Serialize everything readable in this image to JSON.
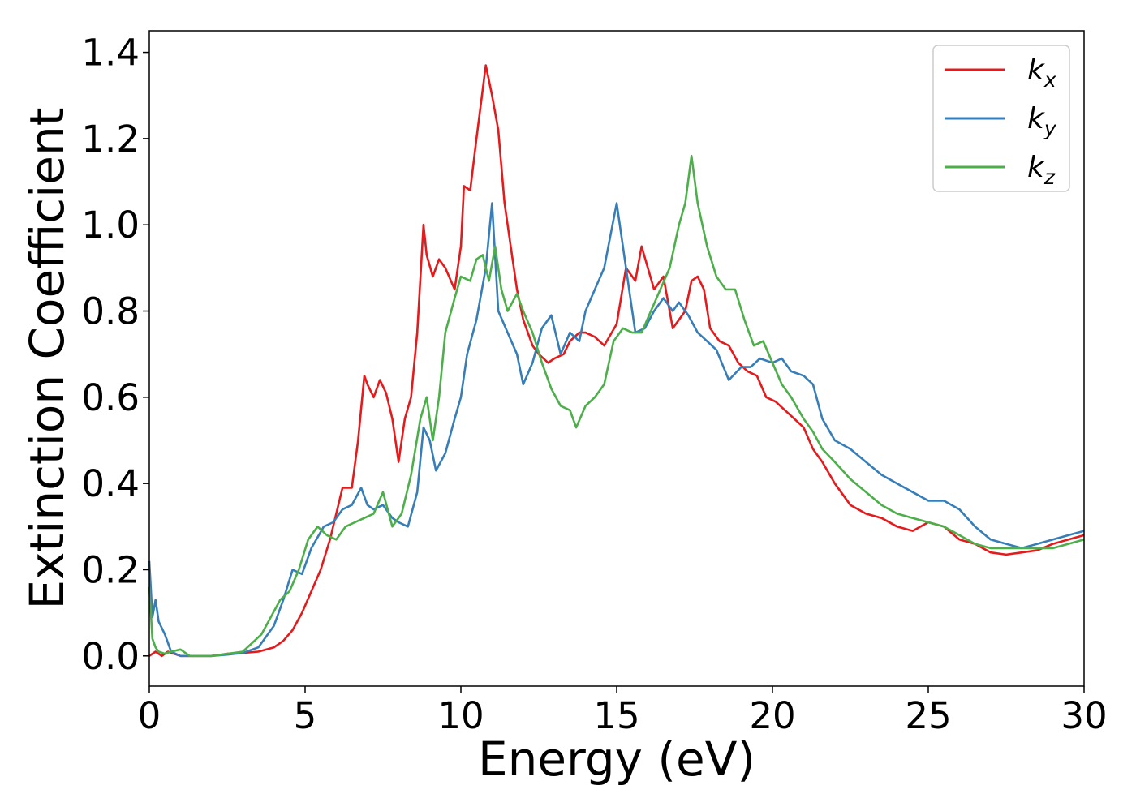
{
  "chart_data": {
    "type": "line",
    "title": "",
    "xlabel": "Energy (eV)",
    "ylabel": "Extinction Coefficient",
    "xlim": [
      0,
      30
    ],
    "ylim": [
      -0.07,
      1.45
    ],
    "xticks": [
      0,
      5,
      10,
      15,
      20,
      25,
      30
    ],
    "yticks": [
      0.0,
      0.2,
      0.4,
      0.6,
      0.8,
      1.0,
      1.2,
      1.4
    ],
    "xtick_labels": [
      "0",
      "5",
      "10",
      "15",
      "20",
      "25",
      "30"
    ],
    "ytick_labels": [
      "0.0",
      "0.2",
      "0.4",
      "0.6",
      "0.8",
      "1.0",
      "1.2",
      "1.4"
    ],
    "grid": false,
    "legend": {
      "position": "top-right"
    },
    "series": [
      {
        "name": "k_x",
        "label_base": "k",
        "label_sub": "x",
        "color": "#e41a1c",
        "x": [
          0,
          0.2,
          0.4,
          0.6,
          0.8,
          1.0,
          1.5,
          2.0,
          2.5,
          3.0,
          3.5,
          4.0,
          4.3,
          4.6,
          4.9,
          5.2,
          5.5,
          5.8,
          6.0,
          6.2,
          6.5,
          6.7,
          6.9,
          7.0,
          7.2,
          7.4,
          7.6,
          7.8,
          8.0,
          8.2,
          8.4,
          8.6,
          8.8,
          8.9,
          9.1,
          9.3,
          9.5,
          9.8,
          10.0,
          10.1,
          10.3,
          10.5,
          10.8,
          11.0,
          11.2,
          11.4,
          11.6,
          11.8,
          12.0,
          12.3,
          12.5,
          12.8,
          13.0,
          13.3,
          13.5,
          13.8,
          14.0,
          14.3,
          14.6,
          15.0,
          15.3,
          15.6,
          15.8,
          16.0,
          16.2,
          16.5,
          16.8,
          17.0,
          17.2,
          17.4,
          17.6,
          17.8,
          18.0,
          18.3,
          18.6,
          18.9,
          19.2,
          19.5,
          19.8,
          20.1,
          20.4,
          20.7,
          21.0,
          21.3,
          21.6,
          22.0,
          22.5,
          23.0,
          23.5,
          24.0,
          24.5,
          25.0,
          25.5,
          26.0,
          26.5,
          27.0,
          27.5,
          28.0,
          28.5,
          29.0,
          29.5,
          30.0
        ],
        "y": [
          0.0,
          0.01,
          0.0,
          0.01,
          0.005,
          0.0,
          0.0,
          0.0,
          0.005,
          0.007,
          0.01,
          0.02,
          0.035,
          0.06,
          0.1,
          0.15,
          0.2,
          0.27,
          0.33,
          0.39,
          0.39,
          0.5,
          0.65,
          0.63,
          0.6,
          0.64,
          0.61,
          0.55,
          0.45,
          0.55,
          0.6,
          0.75,
          1.0,
          0.93,
          0.88,
          0.92,
          0.9,
          0.85,
          0.95,
          1.09,
          1.08,
          1.2,
          1.37,
          1.3,
          1.22,
          1.05,
          0.95,
          0.85,
          0.78,
          0.72,
          0.7,
          0.68,
          0.69,
          0.7,
          0.73,
          0.75,
          0.75,
          0.74,
          0.72,
          0.77,
          0.9,
          0.87,
          0.95,
          0.9,
          0.85,
          0.88,
          0.76,
          0.78,
          0.8,
          0.87,
          0.88,
          0.85,
          0.76,
          0.73,
          0.72,
          0.68,
          0.66,
          0.65,
          0.6,
          0.59,
          0.57,
          0.55,
          0.53,
          0.48,
          0.45,
          0.4,
          0.35,
          0.33,
          0.32,
          0.3,
          0.29,
          0.31,
          0.3,
          0.27,
          0.26,
          0.24,
          0.235,
          0.24,
          0.245,
          0.26,
          0.27,
          0.28
        ]
      },
      {
        "name": "k_y",
        "label_base": "k",
        "label_sub": "y",
        "color": "#377eb8",
        "x": [
          0,
          0.1,
          0.2,
          0.3,
          0.5,
          0.7,
          1.0,
          1.5,
          2.0,
          2.5,
          3.0,
          3.5,
          4.0,
          4.3,
          4.6,
          4.9,
          5.2,
          5.6,
          5.9,
          6.2,
          6.5,
          6.8,
          7.0,
          7.2,
          7.5,
          7.8,
          8.0,
          8.3,
          8.6,
          8.8,
          9.0,
          9.2,
          9.5,
          9.8,
          10.0,
          10.2,
          10.5,
          10.8,
          11.0,
          11.2,
          11.5,
          11.8,
          12.0,
          12.3,
          12.6,
          12.9,
          13.2,
          13.5,
          13.8,
          14.0,
          14.3,
          14.6,
          15.0,
          15.3,
          15.6,
          15.9,
          16.2,
          16.5,
          16.8,
          17.0,
          17.3,
          17.6,
          17.9,
          18.2,
          18.6,
          19.0,
          19.3,
          19.6,
          20.0,
          20.3,
          20.6,
          21.0,
          21.3,
          21.6,
          22.0,
          22.5,
          23.0,
          23.5,
          24.0,
          24.5,
          25.0,
          25.5,
          26.0,
          26.5,
          27.0,
          27.5,
          28.0,
          28.5,
          29.0,
          29.5,
          30.0
        ],
        "y": [
          0.22,
          0.09,
          0.13,
          0.08,
          0.05,
          0.01,
          0.0,
          0.0,
          0.0,
          0.003,
          0.007,
          0.02,
          0.07,
          0.13,
          0.2,
          0.19,
          0.25,
          0.3,
          0.31,
          0.34,
          0.35,
          0.39,
          0.35,
          0.34,
          0.35,
          0.32,
          0.31,
          0.3,
          0.38,
          0.53,
          0.5,
          0.43,
          0.47,
          0.55,
          0.6,
          0.7,
          0.78,
          0.9,
          1.05,
          0.8,
          0.75,
          0.7,
          0.63,
          0.68,
          0.76,
          0.79,
          0.7,
          0.75,
          0.73,
          0.8,
          0.85,
          0.9,
          1.05,
          0.9,
          0.75,
          0.76,
          0.8,
          0.83,
          0.8,
          0.82,
          0.79,
          0.75,
          0.73,
          0.71,
          0.64,
          0.67,
          0.67,
          0.69,
          0.68,
          0.69,
          0.66,
          0.65,
          0.63,
          0.55,
          0.5,
          0.48,
          0.45,
          0.42,
          0.4,
          0.38,
          0.36,
          0.36,
          0.34,
          0.3,
          0.27,
          0.26,
          0.25,
          0.26,
          0.27,
          0.28,
          0.29
        ]
      },
      {
        "name": "k_z",
        "label_base": "k",
        "label_sub": "z",
        "color": "#4daf4a",
        "x": [
          0,
          0.1,
          0.2,
          0.3,
          0.5,
          0.7,
          1.0,
          1.3,
          1.6,
          2.0,
          2.5,
          3.0,
          3.3,
          3.6,
          3.9,
          4.2,
          4.5,
          4.8,
          5.1,
          5.4,
          5.7,
          6.0,
          6.3,
          6.6,
          6.9,
          7.2,
          7.5,
          7.8,
          8.1,
          8.4,
          8.7,
          8.9,
          9.1,
          9.3,
          9.5,
          9.8,
          10.0,
          10.3,
          10.5,
          10.7,
          10.9,
          11.1,
          11.3,
          11.5,
          11.8,
          12.0,
          12.3,
          12.6,
          12.9,
          13.2,
          13.5,
          13.7,
          14.0,
          14.3,
          14.6,
          14.9,
          15.2,
          15.5,
          15.8,
          16.1,
          16.4,
          16.7,
          17.0,
          17.2,
          17.4,
          17.6,
          17.9,
          18.2,
          18.5,
          18.8,
          19.1,
          19.4,
          19.7,
          20.0,
          20.3,
          20.6,
          21.0,
          21.3,
          21.6,
          22.0,
          22.5,
          23.0,
          23.5,
          24.0,
          24.5,
          25.0,
          25.5,
          26.0,
          26.5,
          27.0,
          27.5,
          28.0,
          28.5,
          29.0,
          29.5,
          30.0
        ],
        "y": [
          0.16,
          0.04,
          0.02,
          0.01,
          0.005,
          0.01,
          0.015,
          0.0,
          0.0,
          0.0,
          0.005,
          0.01,
          0.03,
          0.05,
          0.09,
          0.13,
          0.15,
          0.2,
          0.27,
          0.3,
          0.28,
          0.27,
          0.3,
          0.31,
          0.32,
          0.33,
          0.38,
          0.3,
          0.33,
          0.42,
          0.55,
          0.6,
          0.5,
          0.6,
          0.75,
          0.83,
          0.88,
          0.87,
          0.92,
          0.93,
          0.87,
          0.95,
          0.85,
          0.8,
          0.84,
          0.8,
          0.75,
          0.68,
          0.62,
          0.58,
          0.57,
          0.53,
          0.58,
          0.6,
          0.63,
          0.73,
          0.76,
          0.75,
          0.75,
          0.8,
          0.85,
          0.9,
          1.0,
          1.05,
          1.16,
          1.05,
          0.95,
          0.88,
          0.85,
          0.85,
          0.78,
          0.72,
          0.73,
          0.68,
          0.63,
          0.6,
          0.55,
          0.52,
          0.48,
          0.45,
          0.41,
          0.38,
          0.35,
          0.33,
          0.32,
          0.31,
          0.3,
          0.28,
          0.26,
          0.25,
          0.25,
          0.25,
          0.25,
          0.25,
          0.26,
          0.27
        ]
      }
    ]
  }
}
